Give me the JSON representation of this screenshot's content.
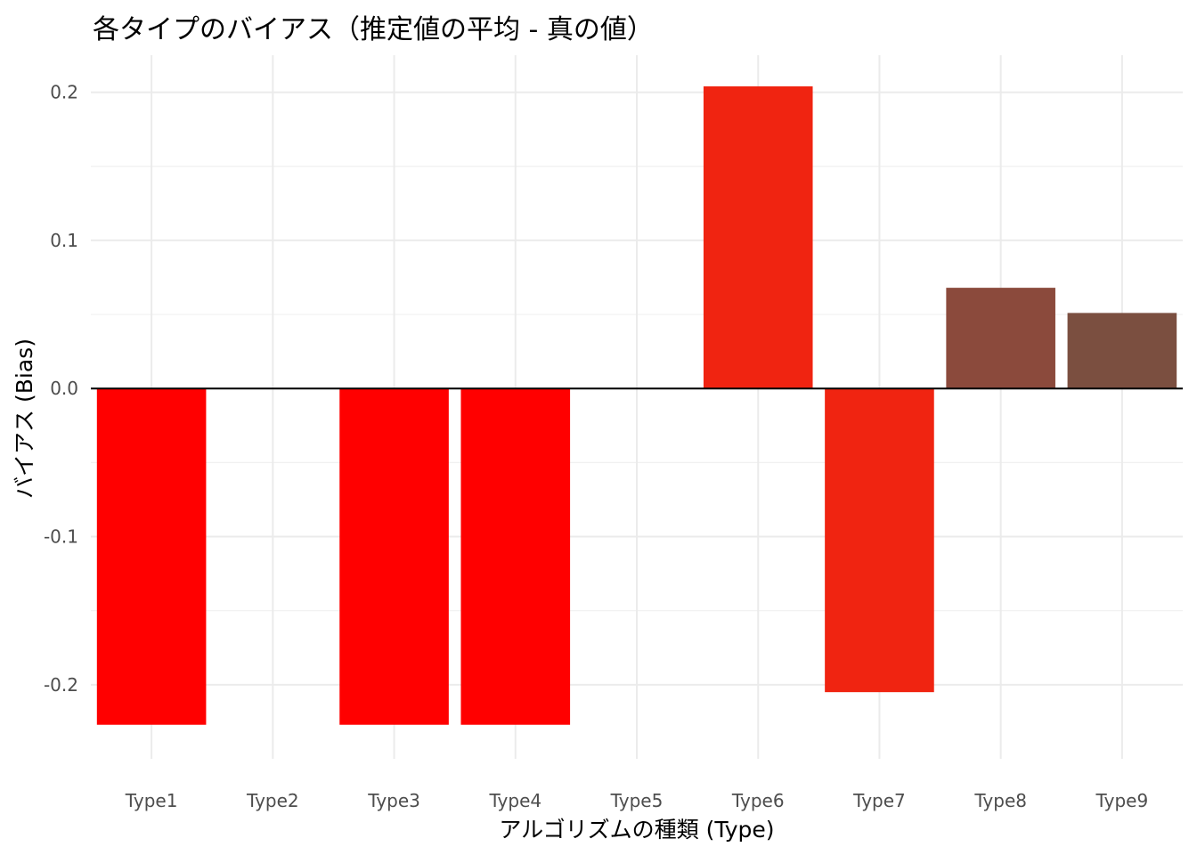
{
  "chart_data": {
    "type": "bar",
    "title": "各タイプのバイアス（推定値の平均 - 真の値）",
    "xlabel": "アルゴリズムの種類 (Type)",
    "ylabel": "バイアス (Bias)",
    "categories": [
      "Type1",
      "Type2",
      "Type3",
      "Type4",
      "Type5",
      "Type6",
      "Type7",
      "Type8",
      "Type9"
    ],
    "values": [
      -0.227,
      0,
      -0.227,
      -0.227,
      0,
      0.204,
      -0.205,
      0.068,
      0.051
    ],
    "colors": [
      "#FF0000",
      "#FF0000",
      "#FF0000",
      "#FF0000",
      "#FF0000",
      "#F02411",
      "#F02411",
      "#8B4A3C",
      "#7B4F40"
    ],
    "yticks": [
      -0.2,
      -0.1,
      0.0,
      0.1,
      0.2
    ],
    "ytick_labels": [
      "-0.2",
      "-0.1",
      "0.0",
      "0.1",
      "0.2"
    ],
    "ylim": [
      -0.25,
      0.225
    ],
    "grid": true,
    "zero_line": true,
    "legend": "none"
  }
}
